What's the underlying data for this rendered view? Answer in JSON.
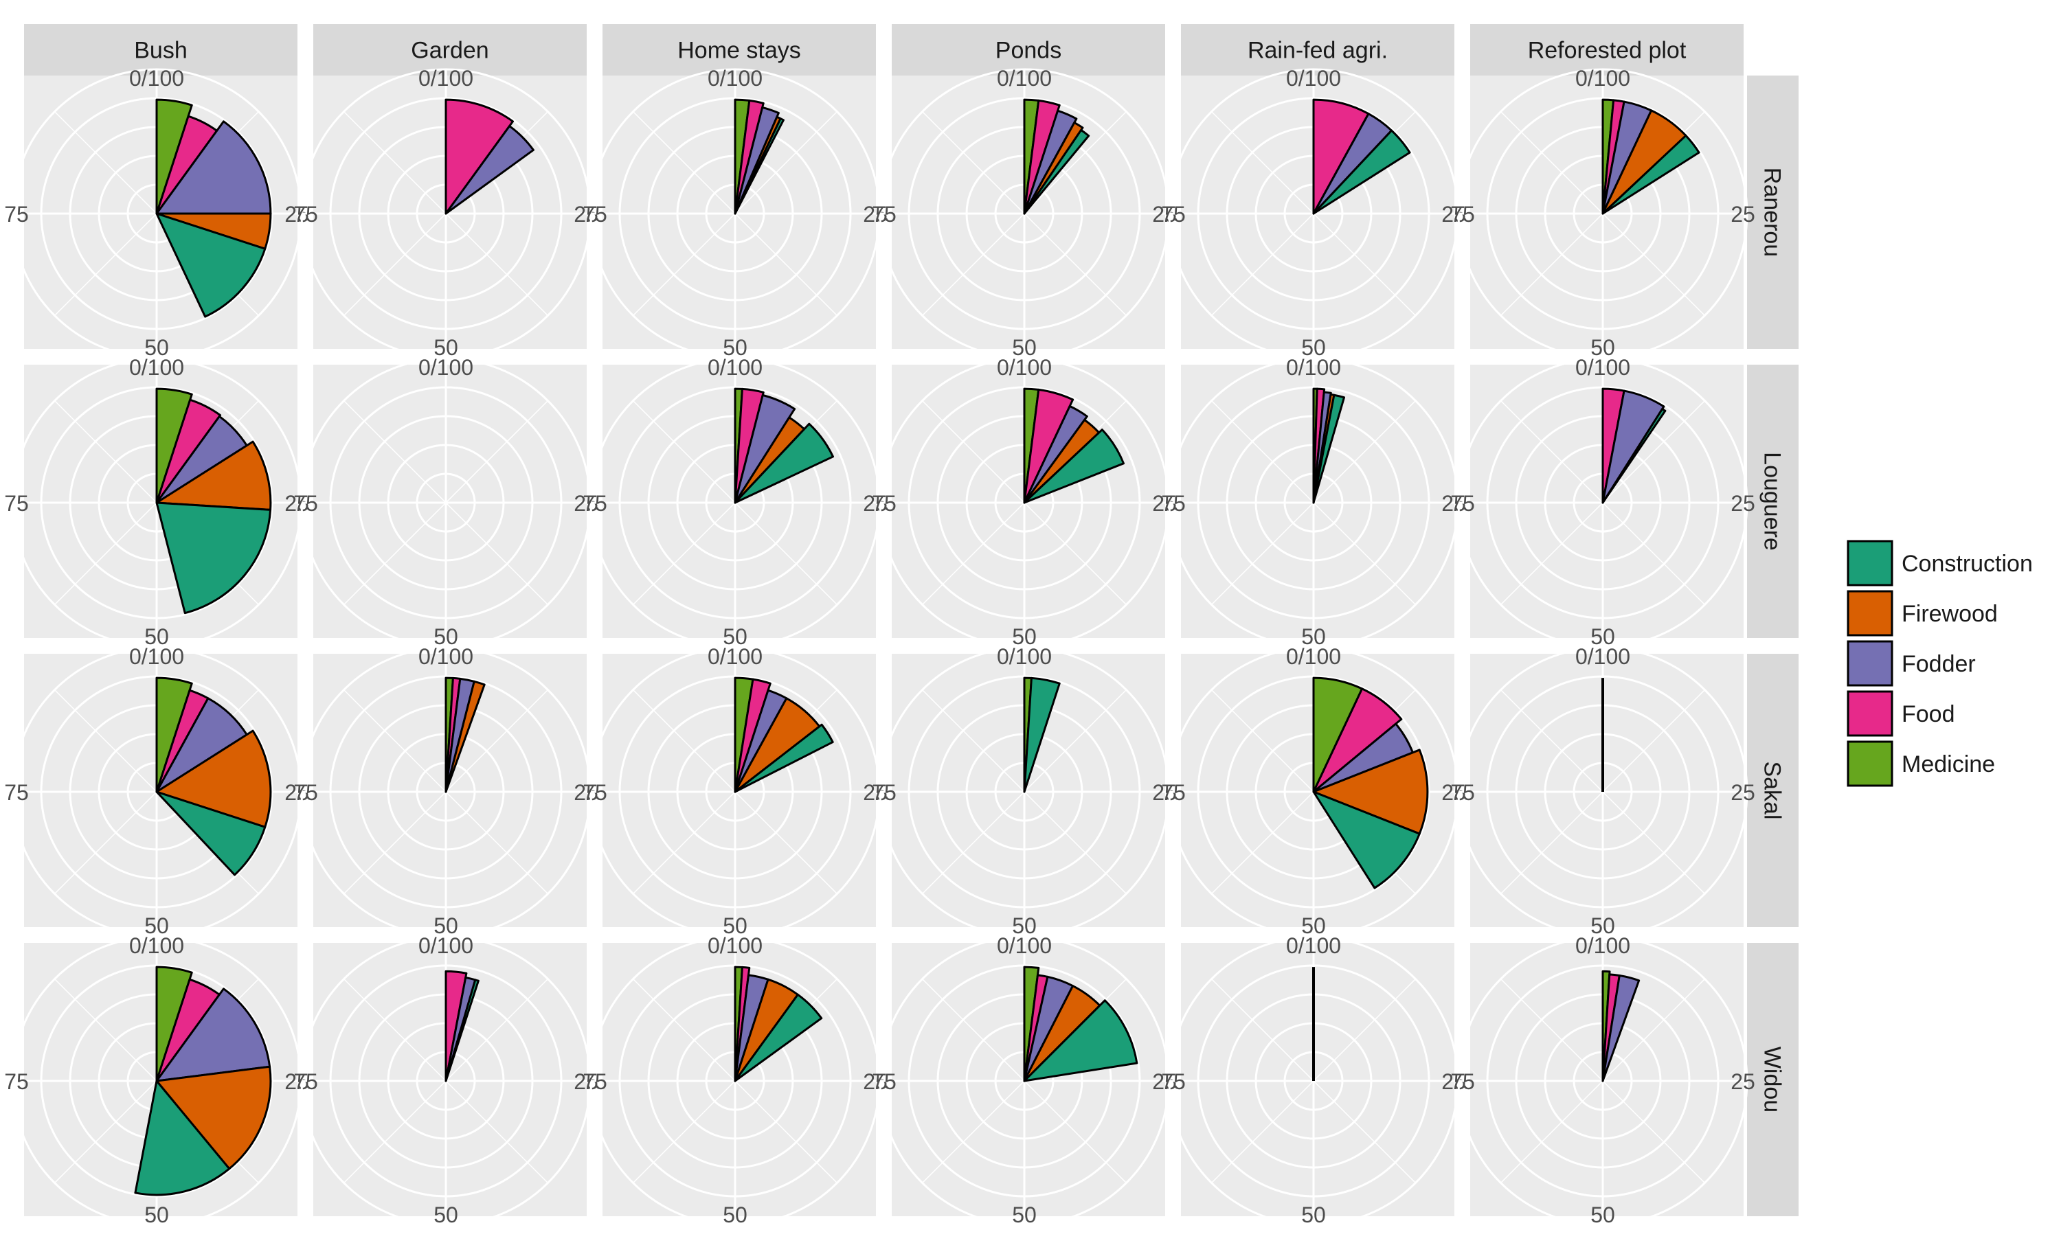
{
  "chart_data": {
    "type": "polar-stacked-bar-facet",
    "columns": [
      "Bush",
      "Garden",
      "Home stays",
      "Ponds",
      "Rain-fed agri.",
      "Reforested plot"
    ],
    "rows": [
      "Ranerou",
      "Louguere",
      "Sakal",
      "Widou"
    ],
    "angle_axis": {
      "range": [
        0,
        100
      ],
      "tick_labels": [
        "0/100",
        "25",
        "50",
        "75"
      ],
      "tick_values": [
        0,
        25,
        50,
        75
      ]
    },
    "radius_rings": 4,
    "grid": true,
    "legend": {
      "placement": "right",
      "entries": [
        "Construction",
        "Firewood",
        "Fodder",
        "Food",
        "Medicine"
      ]
    },
    "colors": {
      "Construction": "#1b9e77",
      "Firewood": "#d95f02",
      "Fodder": "#7570b3",
      "Food": "#e7298a",
      "Medicine": "#66a61e",
      "panel_bg": "#ebebeb",
      "strip_bg": "#d9d9d9",
      "grid": "#ffffff",
      "outline": "#000000"
    },
    "stack_order": [
      "Medicine",
      "Food",
      "Fodder",
      "Firewood",
      "Construction"
    ],
    "series_radius": {
      "Medicine": 1.0,
      "Food": 0.86,
      "Fodder": 0.79,
      "Firewood": 0.79,
      "Construction": 0.79
    },
    "panels": [
      {
        "row": "Ranerou",
        "col": "Bush",
        "values": {
          "Medicine": 5,
          "Food": 5,
          "Fodder": 15,
          "Firewood": 5,
          "Construction": 13
        },
        "radii": {
          "Medicine": 0.79,
          "Food": 0.71,
          "Fodder": 0.79,
          "Firewood": 0.79,
          "Construction": 0.79
        }
      },
      {
        "row": "Ranerou",
        "col": "Garden",
        "values": {
          "Food": 10,
          "Fodder": 5
        },
        "radii": {
          "Food": 0.79,
          "Fodder": 0.75
        }
      },
      {
        "row": "Ranerou",
        "col": "Home stays",
        "values": {
          "Medicine": 2,
          "Food": 2,
          "Fodder": 2.5,
          "Firewood": 0.6,
          "Construction": 0.5
        },
        "radii": {
          "Medicine": 0.79,
          "Food": 0.79,
          "Fodder": 0.76,
          "Firewood": 0.73,
          "Construction": 0.73
        }
      },
      {
        "row": "Ranerou",
        "col": "Ponds",
        "values": {
          "Medicine": 2,
          "Food": 3,
          "Fodder": 3,
          "Firewood": 1.5,
          "Construction": 1.5
        },
        "radii": {
          "Medicine": 0.79,
          "Food": 0.79,
          "Fodder": 0.75,
          "Firewood": 0.72,
          "Construction": 0.7
        }
      },
      {
        "row": "Ranerou",
        "col": "Rain-fed agri.",
        "values": {
          "Food": 8,
          "Fodder": 4,
          "Construction": 4
        },
        "radii": {
          "Food": 0.79,
          "Fodder": 0.79,
          "Construction": 0.79
        }
      },
      {
        "row": "Ranerou",
        "col": "Reforested plot",
        "values": {
          "Medicine": 1.5,
          "Food": 1.5,
          "Fodder": 4,
          "Firewood": 6,
          "Construction": 3
        },
        "radii": {
          "Medicine": 0.79,
          "Food": 0.79,
          "Fodder": 0.79,
          "Firewood": 0.79,
          "Construction": 0.79
        }
      },
      {
        "row": "Louguere",
        "col": "Bush",
        "values": {
          "Medicine": 5,
          "Food": 5,
          "Fodder": 6,
          "Firewood": 10,
          "Construction": 20
        },
        "radii": {
          "Medicine": 0.79,
          "Food": 0.75,
          "Fodder": 0.74,
          "Firewood": 0.79,
          "Construction": 0.79
        }
      },
      {
        "row": "Louguere",
        "col": "Garden",
        "values": {},
        "radii": {}
      },
      {
        "row": "Louguere",
        "col": "Home stays",
        "values": {
          "Medicine": 1,
          "Food": 3,
          "Fodder": 5,
          "Firewood": 3,
          "Construction": 6
        },
        "radii": {
          "Medicine": 0.79,
          "Food": 0.79,
          "Fodder": 0.77,
          "Firewood": 0.7,
          "Construction": 0.75
        }
      },
      {
        "row": "Louguere",
        "col": "Ponds",
        "values": {
          "Medicine": 2,
          "Food": 5,
          "Fodder": 3,
          "Firewood": 3,
          "Construction": 6
        },
        "radii": {
          "Medicine": 0.79,
          "Food": 0.79,
          "Fodder": 0.74,
          "Firewood": 0.71,
          "Construction": 0.74
        }
      },
      {
        "row": "Louguere",
        "col": "Rain-fed agri.",
        "values": {
          "Medicine": 0.5,
          "Food": 1,
          "Fodder": 1,
          "Firewood": 0.5,
          "Construction": 1.5
        },
        "radii": {
          "Medicine": 0.79,
          "Food": 0.79,
          "Fodder": 0.77,
          "Firewood": 0.76,
          "Construction": 0.76
        }
      },
      {
        "row": "Louguere",
        "col": "Reforested plot",
        "values": {
          "Food": 3,
          "Fodder": 6,
          "Construction": 0.5
        },
        "radii": {
          "Food": 0.79,
          "Fodder": 0.79,
          "Construction": 0.77
        }
      },
      {
        "row": "Sakal",
        "col": "Bush",
        "values": {
          "Medicine": 5,
          "Food": 3,
          "Fodder": 8,
          "Firewood": 14,
          "Construction": 8
        },
        "radii": {
          "Medicine": 0.79,
          "Food": 0.74,
          "Fodder": 0.74,
          "Firewood": 0.79,
          "Construction": 0.79
        }
      },
      {
        "row": "Sakal",
        "col": "Garden",
        "values": {
          "Medicine": 1,
          "Food": 1,
          "Fodder": 2,
          "Firewood": 1.5
        },
        "radii": {
          "Medicine": 0.79,
          "Food": 0.79,
          "Fodder": 0.79,
          "Firewood": 0.79
        }
      },
      {
        "row": "Sakal",
        "col": "Home stays",
        "values": {
          "Medicine": 2.5,
          "Food": 2.5,
          "Fodder": 3,
          "Firewood": 6.5,
          "Construction": 3
        },
        "radii": {
          "Medicine": 0.79,
          "Food": 0.79,
          "Fodder": 0.74,
          "Firewood": 0.74,
          "Construction": 0.76
        }
      },
      {
        "row": "Sakal",
        "col": "Ponds",
        "values": {
          "Medicine": 1,
          "Construction": 4
        },
        "radii": {
          "Medicine": 0.79,
          "Construction": 0.79
        }
      },
      {
        "row": "Sakal",
        "col": "Rain-fed agri.",
        "values": {
          "Medicine": 7,
          "Food": 7,
          "Fodder": 5,
          "Firewood": 12,
          "Construction": 10
        },
        "radii": {
          "Medicine": 0.79,
          "Food": 0.79,
          "Fodder": 0.74,
          "Firewood": 0.79,
          "Construction": 0.79
        }
      },
      {
        "row": "Sakal",
        "col": "Reforested plot",
        "values": {
          "Medicine": 0.1
        },
        "radii": {
          "Medicine": 0.79
        }
      },
      {
        "row": "Widou",
        "col": "Bush",
        "values": {
          "Medicine": 5,
          "Food": 5,
          "Fodder": 13,
          "Firewood": 16,
          "Construction": 14
        },
        "radii": {
          "Medicine": 0.79,
          "Food": 0.74,
          "Fodder": 0.79,
          "Firewood": 0.79,
          "Construction": 0.79
        }
      },
      {
        "row": "Widou",
        "col": "Garden",
        "values": {
          "Food": 3,
          "Fodder": 1.5,
          "Construction": 0.5
        },
        "radii": {
          "Food": 0.76,
          "Fodder": 0.73,
          "Construction": 0.73
        }
      },
      {
        "row": "Widou",
        "col": "Home stays",
        "values": {
          "Medicine": 1,
          "Food": 1,
          "Fodder": 3,
          "Firewood": 5,
          "Construction": 5
        },
        "radii": {
          "Medicine": 0.79,
          "Food": 0.79,
          "Fodder": 0.74,
          "Firewood": 0.74,
          "Construction": 0.74
        }
      },
      {
        "row": "Widou",
        "col": "Ponds",
        "values": {
          "Medicine": 2,
          "Food": 1.5,
          "Fodder": 4,
          "Firewood": 5,
          "Construction": 10
        },
        "radii": {
          "Medicine": 0.79,
          "Food": 0.74,
          "Fodder": 0.74,
          "Firewood": 0.74,
          "Construction": 0.79
        }
      },
      {
        "row": "Widou",
        "col": "Rain-fed agri.",
        "values": {
          "Medicine": 0.1
        },
        "radii": {
          "Medicine": 0.79
        }
      },
      {
        "row": "Widou",
        "col": "Reforested plot",
        "values": {
          "Medicine": 1,
          "Food": 1.5,
          "Fodder": 3
        },
        "radii": {
          "Medicine": 0.76,
          "Food": 0.74,
          "Fodder": 0.74
        }
      }
    ]
  }
}
